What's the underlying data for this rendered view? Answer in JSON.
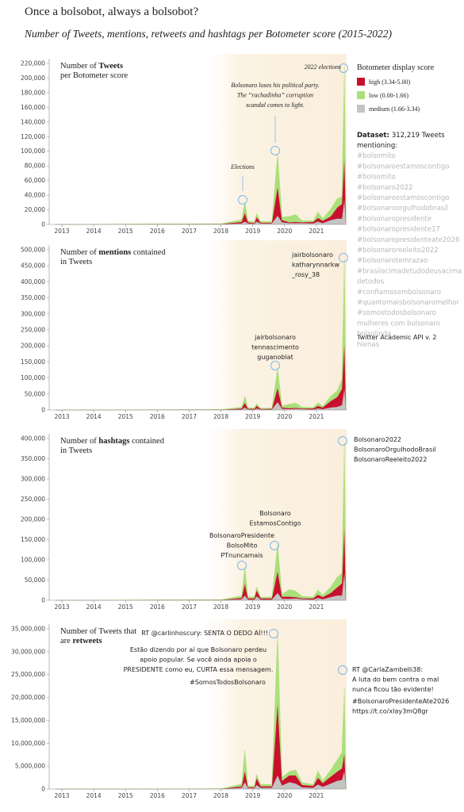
{
  "title": "Once a bolsobot, always a bolsobot?",
  "subtitle": "Number of Tweets, mentions, retweets and hashtags per Botometer score (2015-2022)",
  "legend_title": "Botometer display score",
  "dataset": {
    "label": "Dataset:",
    "count": "312,219 Tweets",
    "lines": [
      "mentioning:",
      "#bolsomito",
      "#bolsonaroestamoscontigo",
      "#bolsomito",
      "#bolsonaro2022",
      "#bolsonaroestamoscontigo",
      "#bolsonaroorgulhodobrasil",
      "#bolsonaropresidente",
      "#bolsonaropresidente17",
      "#bolsonaropresidenteate2026",
      "#bolsonaroreeleito2022",
      "#bolsonarotemrazao",
      "#brasilacimadetudodeusacima",
      "detodos",
      "#confiamosembolsonaro",
      "#quantomaisbolsonaromelhor",
      "#somostodosbolsonaro",
      "mulheres com bolsonaro",
      "bolsolinda",
      "hienas"
    ]
  },
  "source": "Twitter Academic API v. 2",
  "chart_data": [
    {
      "type": "area",
      "title_lines": [
        [
          "Number of ",
          "Tweets"
        ],
        [
          "per Botometer score"
        ]
      ],
      "x": [
        2012.8,
        2018.0,
        2018.65,
        2018.75,
        2018.85,
        2019.05,
        2019.12,
        2019.25,
        2019.6,
        2019.78,
        2019.92,
        2020.15,
        2020.35,
        2020.55,
        2020.9,
        2021.05,
        2021.2,
        2021.45,
        2021.65,
        2021.8,
        2021.88,
        2021.93
      ],
      "xlim": [
        2012.6,
        2021.95
      ],
      "xticks": [
        2013,
        2014,
        2015,
        2016,
        2017,
        2018,
        2019,
        2020,
        2021
      ],
      "ylim": [
        0,
        220000
      ],
      "yticks": [
        0,
        {
          "value": 20000,
          "label": "20,000"
        },
        {
          "value": 40000,
          "label": "40,000"
        },
        {
          "value": 60000,
          "label": "60,000"
        },
        {
          "value": 80000,
          "label": "80,000"
        },
        {
          "value": 100000,
          "label": "100,000"
        },
        {
          "value": 120000,
          "label": "120,000"
        },
        {
          "value": 140000,
          "label": "140,000"
        },
        {
          "value": 160000,
          "label": "160,000"
        },
        {
          "value": 180000,
          "label": "180,000"
        },
        {
          "value": 200000,
          "label": "200,000"
        },
        {
          "value": 220000,
          "label": "220,000"
        }
      ],
      "grid": false,
      "series": [
        {
          "name": "high (3.34-5.00)",
          "color": "#c8102e",
          "values": [
            0,
            200,
            2000,
            12000,
            1500,
            800,
            6000,
            1000,
            1000,
            40000,
            3000,
            1000,
            1500,
            1000,
            2000,
            5000,
            3000,
            5000,
            15000,
            20000,
            60000,
            2000
          ]
        },
        {
          "name": "low (0.00-1.66)",
          "color": "#a8e07a",
          "values": [
            0,
            300,
            3000,
            15000,
            2000,
            1500,
            5000,
            1500,
            1500,
            45000,
            4000,
            8000,
            10000,
            2000,
            1500,
            8000,
            3000,
            10000,
            12000,
            10000,
            120000,
            3000
          ]
        },
        {
          "name": "medium (1.66-3.34)",
          "color": "#c4c4c4",
          "values": [
            100,
            500,
            1500,
            4000,
            1500,
            1000,
            4000,
            1500,
            1500,
            12000,
            3000,
            2000,
            2000,
            2000,
            1500,
            4000,
            2000,
            6000,
            8000,
            8000,
            35000,
            3000
          ]
        }
      ],
      "annotations": [
        {
          "lines": [
            "2022 elections"
          ]
        },
        {
          "lines": [
            "Bolsonaro loses his political party.",
            "The “rachadinha” corruption",
            "scandal comes to light."
          ]
        },
        {
          "lines": [
            "Elections"
          ]
        }
      ]
    },
    {
      "type": "area",
      "title_lines": [
        [
          "Number of ",
          "mentions",
          " contained"
        ],
        [
          "in Tweets"
        ]
      ],
      "x": [
        2012.8,
        2018.0,
        2018.65,
        2018.75,
        2018.85,
        2019.05,
        2019.12,
        2019.25,
        2019.6,
        2019.78,
        2019.92,
        2020.15,
        2020.35,
        2020.55,
        2020.9,
        2021.05,
        2021.2,
        2021.45,
        2021.65,
        2021.8,
        2021.88,
        2021.93
      ],
      "xlim": [
        2012.6,
        2021.95
      ],
      "xticks": [
        2013,
        2014,
        2015,
        2016,
        2017,
        2018,
        2019,
        2020,
        2021
      ],
      "ylim": [
        0,
        500000
      ],
      "yticks": [
        0,
        {
          "value": 50000,
          "label": "50,000"
        },
        {
          "value": 100000,
          "label": "100,000"
        },
        {
          "value": 150000,
          "label": "150,000"
        },
        {
          "value": 200000,
          "label": "200,000"
        },
        {
          "value": 250000,
          "label": "250,000"
        },
        {
          "value": 300000,
          "label": "300,000"
        },
        {
          "value": 350000,
          "label": "350,000"
        },
        {
          "value": 400000,
          "label": "400,000"
        },
        {
          "value": 450000,
          "label": "450,000"
        },
        {
          "value": 500000,
          "label": "500,000"
        }
      ],
      "grid": false,
      "series": [
        {
          "name": "high (3.34-5.00)",
          "color": "#c8102e",
          "values": [
            0,
            300,
            3000,
            15000,
            2000,
            2000,
            8000,
            1500,
            2000,
            45000,
            4000,
            3000,
            3000,
            2000,
            3000,
            8000,
            5000,
            20000,
            30000,
            50000,
            150000,
            3000
          ]
        },
        {
          "name": "low (0.00-1.66)",
          "color": "#a8e07a",
          "values": [
            0,
            500,
            4000,
            20000,
            3000,
            3000,
            7000,
            2000,
            2000,
            60000,
            5000,
            12000,
            15000,
            4000,
            3000,
            10000,
            4000,
            15000,
            20000,
            30000,
            250000,
            4000
          ]
        },
        {
          "name": "medium (1.66-3.34)",
          "color": "#c4c4c4",
          "values": [
            200,
            700,
            2000,
            8000,
            2000,
            2000,
            5000,
            2000,
            2000,
            25000,
            4000,
            3000,
            4000,
            3000,
            2000,
            5000,
            3000,
            8000,
            10000,
            15000,
            70000,
            3000
          ]
        }
      ],
      "annotations": [
        {
          "lines": [
            "jairbolsonaro",
            "katharynnarkw",
            "_rosy_38"
          ]
        },
        {
          "lines": [
            "jairbolsonaro",
            "tennascimento",
            "guganoblat"
          ]
        }
      ]
    },
    {
      "type": "area",
      "title_lines": [
        [
          "Number of ",
          "hashtags",
          " contained"
        ],
        [
          "in Tweets"
        ]
      ],
      "x": [
        2012.8,
        2018.0,
        2018.65,
        2018.75,
        2018.85,
        2019.05,
        2019.12,
        2019.25,
        2019.6,
        2019.78,
        2019.92,
        2020.15,
        2020.35,
        2020.55,
        2020.9,
        2021.05,
        2021.2,
        2021.45,
        2021.65,
        2021.8,
        2021.88,
        2021.93
      ],
      "xlim": [
        2012.6,
        2021.95
      ],
      "xticks": [
        2013,
        2014,
        2015,
        2016,
        2017,
        2018,
        2019,
        2020,
        2021
      ],
      "ylim": [
        0,
        400000
      ],
      "yticks": [
        0,
        {
          "value": 50000,
          "label": "50,000"
        },
        {
          "value": 100000,
          "label": "100,000"
        },
        {
          "value": 150000,
          "label": "150,000"
        },
        {
          "value": 200000,
          "label": "200,000"
        },
        {
          "value": 250000,
          "label": "250,000"
        },
        {
          "value": 300000,
          "label": "300,000"
        },
        {
          "value": 350000,
          "label": "350,000"
        },
        {
          "value": 400000,
          "label": "400,000"
        }
      ],
      "grid": false,
      "series": [
        {
          "name": "high (3.34-5.00)",
          "color": "#c8102e",
          "values": [
            0,
            300,
            3000,
            30000,
            3000,
            3000,
            15000,
            3000,
            3000,
            55000,
            5000,
            5000,
            3000,
            2000,
            3000,
            8000,
            5000,
            10000,
            20000,
            30000,
            120000,
            3000
          ]
        },
        {
          "name": "low (0.00-1.66)",
          "color": "#a8e07a",
          "values": [
            0,
            500,
            5000,
            40000,
            4000,
            3000,
            8000,
            3000,
            3000,
            65000,
            5000,
            18000,
            15000,
            5000,
            3000,
            12000,
            5000,
            15000,
            25000,
            25000,
            200000,
            4000
          ]
        },
        {
          "name": "medium (1.66-3.34)",
          "color": "#c4c4c4",
          "values": [
            200,
            700,
            3000,
            12000,
            2000,
            2000,
            10000,
            2000,
            2000,
            18000,
            4000,
            4000,
            5000,
            3000,
            2000,
            6000,
            3000,
            8000,
            12000,
            12000,
            70000,
            3000
          ]
        }
      ],
      "annotations": [
        {
          "lines": [
            "Bolsonaro2022",
            "BolsonaroOrgulhodoBrasil",
            "BolsonaroReeleito2022"
          ]
        },
        {
          "lines": [
            "Bolsonaro",
            "EstamosContigo"
          ]
        },
        {
          "lines": [
            "BolsonaroPresidente",
            "BolsoMito",
            "PTnuncamais"
          ]
        }
      ]
    },
    {
      "type": "area",
      "title_lines": [
        [
          "Number of Tweets that "
        ],
        [
          "are ",
          "retweets"
        ]
      ],
      "x": [
        2012.8,
        2018.0,
        2018.65,
        2018.75,
        2018.85,
        2019.05,
        2019.12,
        2019.25,
        2019.6,
        2019.78,
        2019.92,
        2020.15,
        2020.35,
        2020.55,
        2020.9,
        2021.05,
        2021.2,
        2021.45,
        2021.65,
        2021.8,
        2021.88,
        2021.93
      ],
      "xlim": [
        2012.6,
        2021.95
      ],
      "xticks": [
        2013,
        2014,
        2015,
        2016,
        2017,
        2018,
        2019,
        2020,
        2021
      ],
      "ylim": [
        0,
        35000000
      ],
      "yticks": [
        0,
        {
          "value": 5000000,
          "label": "5,000,000"
        },
        {
          "value": 10000000,
          "label": "10,000,000"
        },
        {
          "value": 15000000,
          "label": "15,000,000"
        },
        {
          "value": 20000000,
          "label": "20,000,000"
        },
        {
          "value": 25000000,
          "label": "25,000,000"
        },
        {
          "value": 30000000,
          "label": "30,000,000"
        },
        {
          "value": 35000000,
          "label": "35,000,000"
        }
      ],
      "grid": false,
      "series": [
        {
          "name": "high (3.34-5.00)",
          "color": "#c8102e",
          "values": [
            0,
            20000,
            300000,
            2500000,
            200000,
            200000,
            1500000,
            300000,
            300000,
            16000000,
            1000000,
            1500000,
            1800000,
            500000,
            400000,
            1500000,
            800000,
            1500000,
            2000000,
            2500000,
            4000000,
            200000
          ]
        },
        {
          "name": "low (0.00-1.66)",
          "color": "#a8e07a",
          "values": [
            0,
            20000,
            500000,
            4500000,
            300000,
            300000,
            800000,
            400000,
            400000,
            15000000,
            800000,
            800000,
            1200000,
            500000,
            300000,
            1500000,
            500000,
            1500000,
            2500000,
            3500000,
            14000000,
            300000
          ]
        },
        {
          "name": "medium (1.66-3.34)",
          "color": "#c4c4c4",
          "values": [
            10000,
            30000,
            300000,
            1500000,
            200000,
            200000,
            900000,
            300000,
            300000,
            3000000,
            800000,
            1500000,
            1200000,
            400000,
            300000,
            1000000,
            500000,
            1200000,
            1800000,
            2000000,
            4000000,
            200000
          ]
        }
      ],
      "annotations": [
        {
          "lines": [
            "RT @carlinhoscury: SENTA O DEDO AÍ!!!"
          ]
        },
        {
          "lines": [
            "Estão dizendo por aí que Bolsonaro perdeu",
            "apoio popular. Se você ainda apoia o",
            "PRESIDENTE como eu, CURTA essa mensagem."
          ]
        },
        {
          "lines": [
            "#SomosTodosBolsonaro"
          ]
        },
        {
          "lines": [
            "RT @CarlaZambelli38:",
            "A luta do bem contra o mal",
            "nunca ficou tão evidente!"
          ]
        },
        {
          "lines": [
            "#BolsonaroPresidenteAte2026",
            "https://t.co/xIay3mQ8gr"
          ]
        }
      ]
    }
  ]
}
